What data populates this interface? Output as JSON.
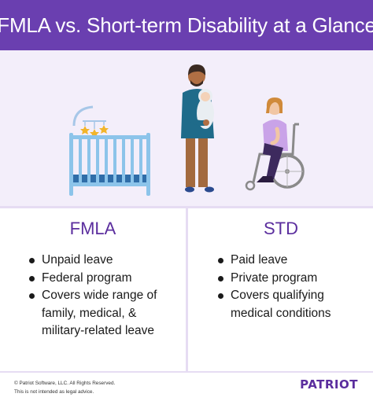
{
  "header": {
    "title": "FMLA vs. Short-term Disability at a Glance"
  },
  "colors": {
    "brand_purple": "#6a3fb0",
    "heading_purple": "#5b2e9e",
    "panel_lavender": "#f3eefa"
  },
  "left_column": {
    "title": "FMLA",
    "items": [
      "Unpaid leave",
      "Federal program",
      "Covers wide range of family, medical, & military-related leave"
    ]
  },
  "right_column": {
    "title": "STD",
    "items": [
      "Paid leave",
      "Private program",
      "Covers qualifying medical conditions"
    ]
  },
  "footer": {
    "copyright": "© Patriot Software, LLC. All Rights Reserved.",
    "disclaimer": "This is not intended as legal advice.",
    "logo_text": "PATRIOT"
  },
  "illustration": {
    "icons": [
      "crib-with-mobile-icon",
      "parent-holding-baby-icon",
      "person-in-wheelchair-icon"
    ]
  }
}
